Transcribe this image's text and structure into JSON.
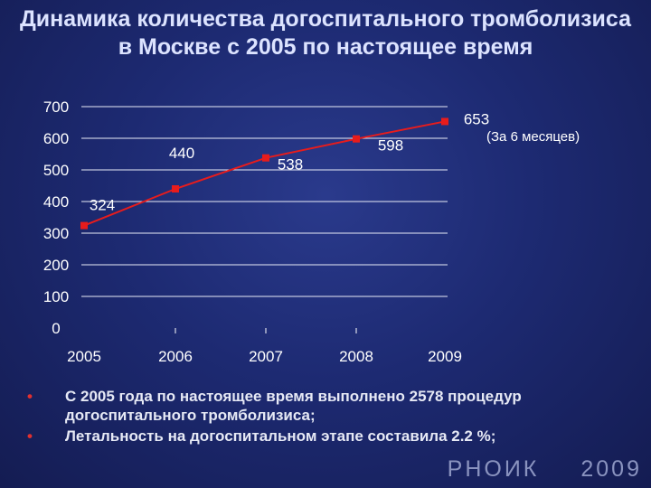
{
  "title": "Динамика количества догоспитального тромболизиса в Москве  с 2005 по настоящее время",
  "chart_data": {
    "type": "line",
    "categories": [
      "2005",
      "2006",
      "2007",
      "2008",
      "2009"
    ],
    "values": [
      324,
      440,
      538,
      598,
      653
    ],
    "ylim": [
      0,
      700
    ],
    "yticks": [
      0,
      100,
      200,
      300,
      400,
      500,
      600,
      700
    ],
    "grid": true,
    "color": "#e81c1c",
    "annotation": "(За 6 месяцев)",
    "title": "",
    "xlabel": "",
    "ylabel": ""
  },
  "bullets": [
    "С 2005 года по настоящее время выполнено 2578 процедур догоспитального тромболизиса;",
    "Летальность на догоспитальном этапе составила 2.2 %;"
  ],
  "bullet_marker": "•",
  "brand": {
    "name": "РНОИК",
    "year": "2009"
  }
}
